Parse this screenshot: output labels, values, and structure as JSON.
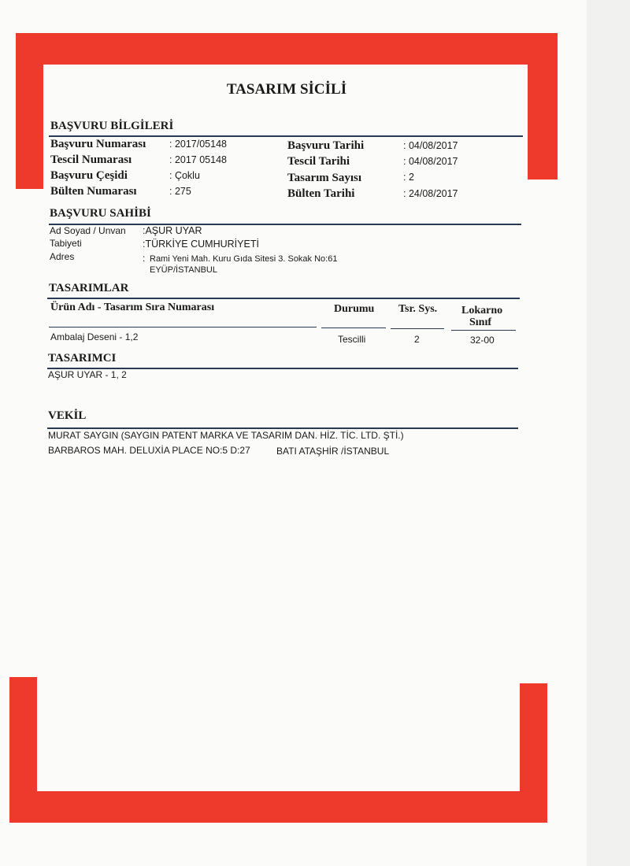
{
  "title": "TASARIM SİCİLİ",
  "basvuru_bilgileri": {
    "heading": "BAŞVURU BİLGİLERİ",
    "left": [
      {
        "label": "Başvuru Numarası",
        "value": ": 2017/05148"
      },
      {
        "label": "Tescil Numarası",
        "value": ": 2017 05148"
      },
      {
        "label": "Başvuru Çeşidi",
        "value": ": Çoklu"
      },
      {
        "label": "Bülten Numarası",
        "value": ": 275"
      }
    ],
    "right": [
      {
        "label": "Başvuru Tarihi",
        "value": ": 04/08/2017"
      },
      {
        "label": "Tescil Tarihi",
        "value": ": 04/08/2017"
      },
      {
        "label": "Tasarım Sayısı",
        "value": ": 2"
      },
      {
        "label": "Bülten Tarihi",
        "value": ": 24/08/2017"
      }
    ]
  },
  "basvuru_sahibi": {
    "heading": "BAŞVURU SAHİBİ",
    "rows": [
      {
        "label": "Ad Soyad / Unvan",
        "value": ":AŞUR UYAR"
      },
      {
        "label": "Tabiyeti",
        "value": ":TÜRKİYE CUMHURİYETİ"
      },
      {
        "label": "Adres",
        "value": ":",
        "line1": "Rami Yeni Mah. Kuru Gıda Sitesi 3. Sokak No:61",
        "line2": "EYÜP/İSTANBUL"
      }
    ]
  },
  "tasarimlar": {
    "heading": "TASARIMLAR",
    "columns": [
      "Ürün Adı - Tasarım Sıra Numarası",
      "Durumu",
      "Tsr. Sys.",
      "Lokarno",
      "Sınıf"
    ],
    "rows": [
      {
        "urun": "Ambalaj Deseni - 1,2",
        "durum": "Tescilli",
        "sayi": "2",
        "lokarno": "32-00"
      }
    ]
  },
  "tasarimci": {
    "heading": "TASARIMCI",
    "text": "AŞUR UYAR - 1, 2"
  },
  "vekil": {
    "heading": "VEKİL",
    "line1": "MURAT SAYGIN (SAYGIN PATENT MARKA VE TASARIM DAN. HİZ. TİC. LTD. ŞTİ.)",
    "line2a": "BARBAROS MAH. DELUXİA PLACE NO:5 D:27",
    "line2b": "BATI ATAŞHİR /İSTANBUL"
  },
  "colors": {
    "frame": "#ee3a2c",
    "rule": "#2a3a55"
  }
}
